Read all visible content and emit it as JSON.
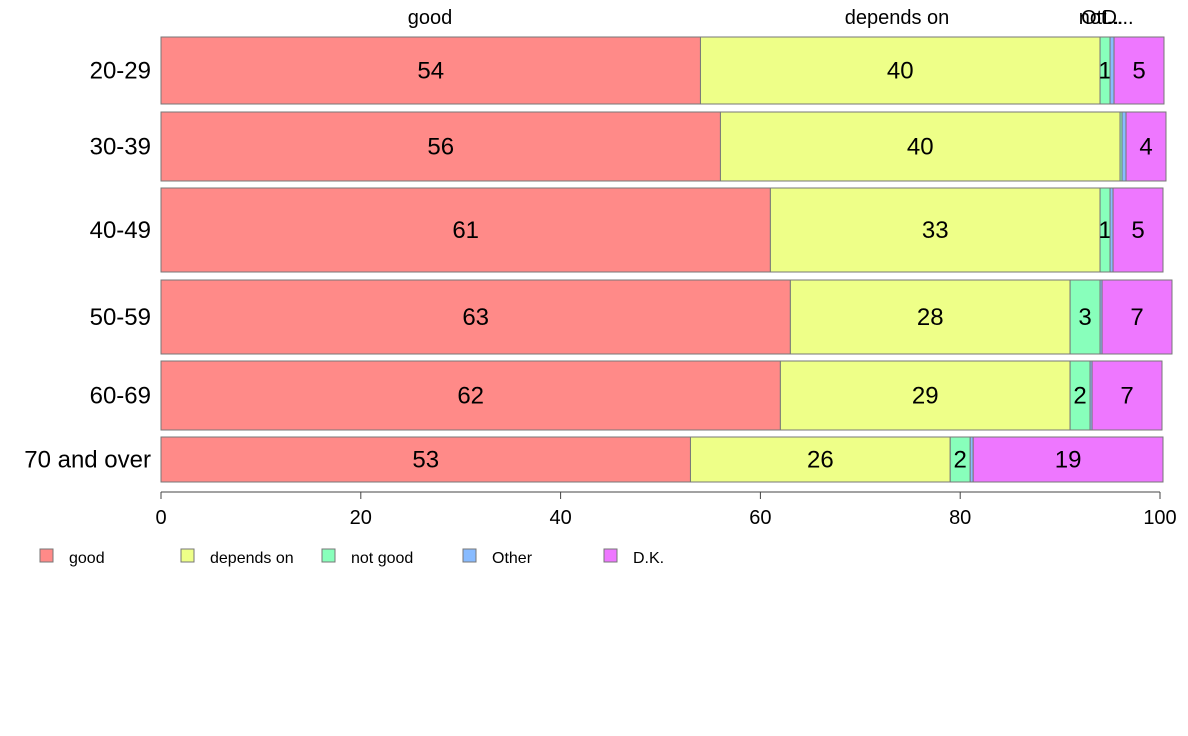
{
  "chart_data": {
    "type": "bar",
    "orientation": "horizontal",
    "stacked": true,
    "categories": [
      "20-29",
      "30-39",
      "40-49",
      "50-59",
      "60-69",
      "70 and over"
    ],
    "series": [
      {
        "name": "good",
        "color": "#ff8a88",
        "values": [
          54,
          56,
          61,
          63,
          62,
          53
        ]
      },
      {
        "name": "depends on",
        "color": "#eeff88",
        "values": [
          40,
          40,
          33,
          28,
          29,
          26
        ]
      },
      {
        "name": "not good",
        "color": "#88ffbb",
        "values": [
          1,
          0.2,
          1,
          3,
          2,
          2
        ]
      },
      {
        "name": "Other",
        "color": "#88bbff",
        "values": [
          0.4,
          0.4,
          0.3,
          0.2,
          0.2,
          0.3
        ]
      },
      {
        "name": "D.K.",
        "color": "#ee77ff",
        "values": [
          5,
          4,
          5,
          7,
          7,
          19
        ]
      }
    ],
    "data_labels": [
      [
        "54",
        "40",
        "1",
        "",
        "5"
      ],
      [
        "56",
        "40",
        "",
        "",
        "4"
      ],
      [
        "61",
        "33",
        "1",
        "",
        "5"
      ],
      [
        "63",
        "28",
        "3",
        "",
        "7"
      ],
      [
        "62",
        "29",
        "2",
        "",
        "7"
      ],
      [
        "53",
        "26",
        "2",
        "",
        "19"
      ]
    ],
    "top_labels": [
      "good",
      "depends on",
      "not...",
      "Ot...",
      "D..."
    ],
    "x_ticks": [
      "0",
      "20",
      "40",
      "60",
      "80",
      "100"
    ],
    "xlim": [
      0,
      100
    ],
    "xlabel": "",
    "ylabel": "",
    "grid": false,
    "legend_position": "bottom-left"
  }
}
